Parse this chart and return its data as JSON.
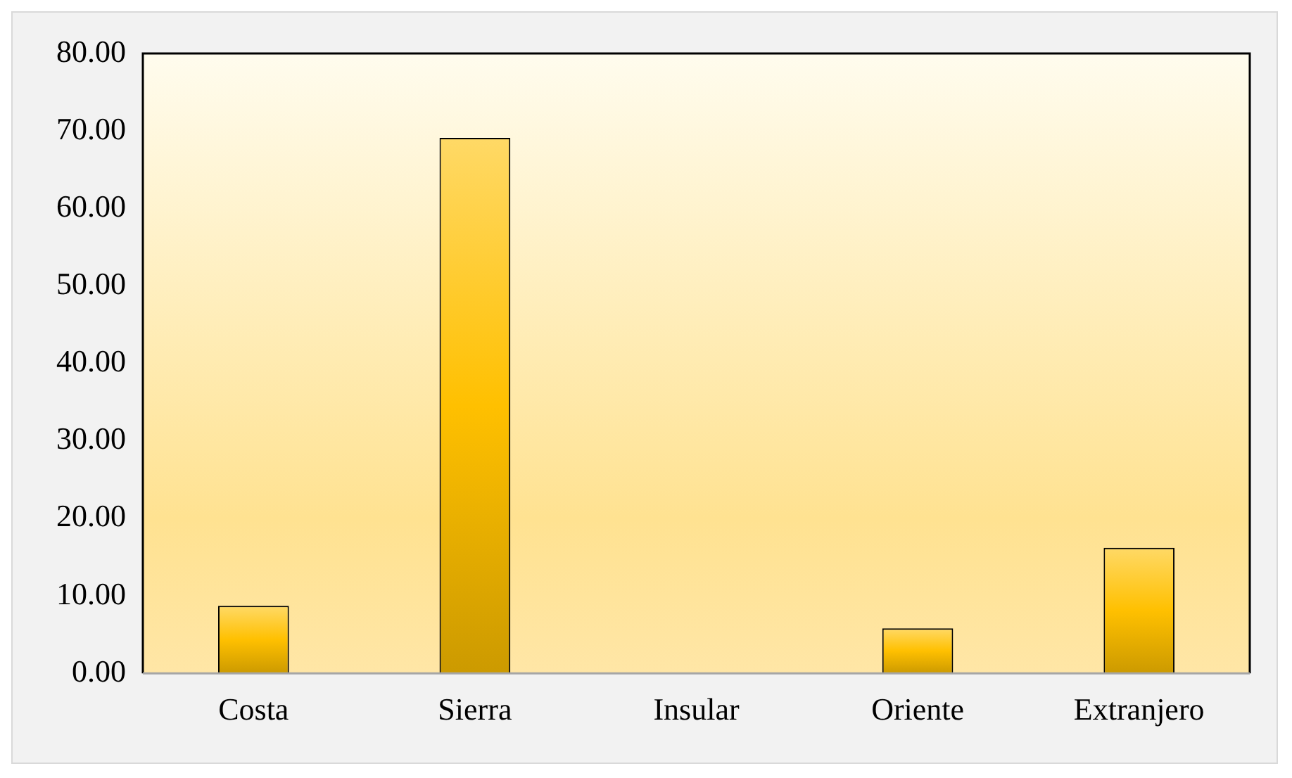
{
  "chart_data": {
    "type": "bar",
    "categories": [
      "Costa",
      "Sierra",
      "Insular",
      "Oriente",
      "Extranjero"
    ],
    "values": [
      8.7,
      69.1,
      0,
      5.8,
      16.2
    ],
    "color": "#ffc000",
    "ylim": [
      0,
      80
    ],
    "yticks": [
      {
        "value": 0,
        "label": "0.00"
      },
      {
        "value": 10,
        "label": "10.00"
      },
      {
        "value": 20,
        "label": "20.00"
      },
      {
        "value": 30,
        "label": "30.00"
      },
      {
        "value": 40,
        "label": "40.00"
      },
      {
        "value": 50,
        "label": "50.00"
      },
      {
        "value": 60,
        "label": "60.00"
      },
      {
        "value": 70,
        "label": "70.00"
      },
      {
        "value": 80,
        "label": "80.00"
      }
    ],
    "grid": false,
    "legend": false
  }
}
